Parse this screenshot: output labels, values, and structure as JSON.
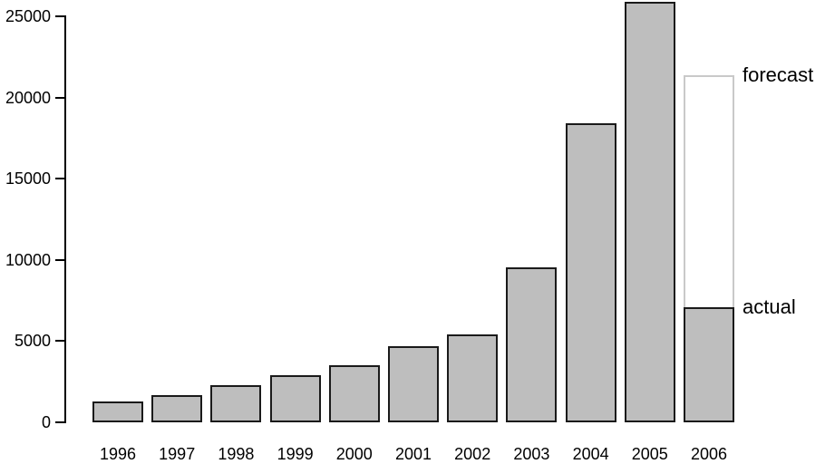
{
  "chart_data": {
    "type": "bar",
    "title": "",
    "xlabel": "",
    "ylabel": "",
    "categories": [
      "1996",
      "1997",
      "1998",
      "1999",
      "2000",
      "2001",
      "2002",
      "2003",
      "2004",
      "2005",
      "2006"
    ],
    "series": [
      {
        "name": "actual",
        "values": [
          1300,
          1700,
          2300,
          2900,
          3500,
          4700,
          5400,
          9550,
          18400,
          25900,
          7100
        ]
      },
      {
        "name": "forecast",
        "values": [
          null,
          null,
          null,
          null,
          null,
          null,
          null,
          null,
          null,
          null,
          21400
        ]
      }
    ],
    "ylim": [
      0,
      25000
    ],
    "yticks": [
      0,
      5000,
      10000,
      15000,
      20000,
      25000
    ],
    "grid": false,
    "legend_position": "none",
    "annotations": [
      {
        "label": "forecast",
        "year": "2006",
        "value": 21400
      },
      {
        "label": "actual",
        "year": "2006",
        "value": 7100
      }
    ],
    "colors": {
      "bar_fill": "#bebebe",
      "bar_border": "#1a1a1a",
      "forecast_fill": "#ffffff",
      "forecast_border": "#c9c9c9",
      "axis": "#000000",
      "text": "#000000",
      "background": "#ffffff"
    }
  }
}
